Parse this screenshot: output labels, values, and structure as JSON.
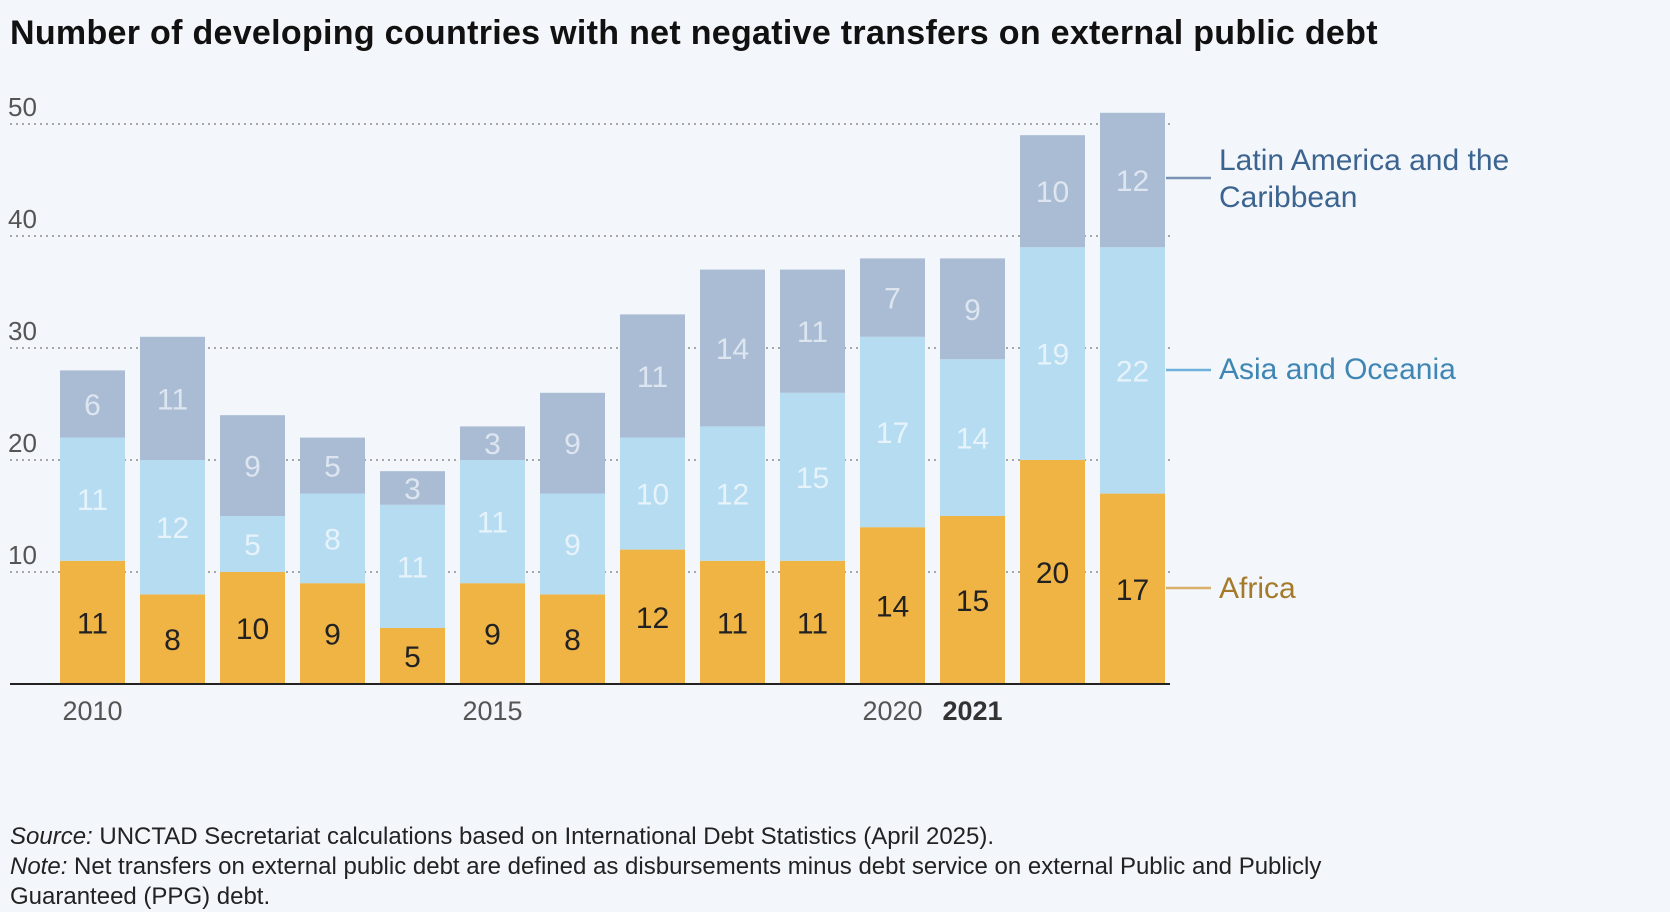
{
  "title": "Number of developing countries with net negative transfers on external public debt",
  "footnote": {
    "source_label": "Source:",
    "source_text": " UNCTAD Secretariat calculations based on International Debt Statistics (April 2025).",
    "note_label": "Note:",
    "note_text": " Net transfers on external public debt are defined as disbursements minus debt service on external Public and Publicly",
    "note_text_2": "Guaranteed (PPG) debt."
  },
  "colors": {
    "africa": "#f0b445",
    "asia": "#b6dcf1",
    "latam": "#a9bcd4",
    "africa_label": "#a57b2a",
    "asia_label": "#3f86b4",
    "latam_label": "#3c6490",
    "inbar_latam": "#dde6f0",
    "inbar_asia": "#e6f3fb",
    "inbar_africa": "#222222",
    "grid": "#777777",
    "axis_text": "#555555"
  },
  "chart_data": {
    "type": "bar",
    "stacked": true,
    "categories": [
      "2010",
      "2011",
      "2012",
      "2013",
      "2014",
      "2015",
      "2016",
      "2017",
      "2018",
      "2019",
      "2020",
      "2021",
      "2022",
      "2023"
    ],
    "tick_labels": [
      {
        "index": 0,
        "label": "2010",
        "bold": false
      },
      {
        "index": 5,
        "label": "2015",
        "bold": false
      },
      {
        "index": 10,
        "label": "2020",
        "bold": false
      },
      {
        "index": 11,
        "label": "2021",
        "bold": true
      }
    ],
    "series": [
      {
        "name": "Africa",
        "values": [
          11,
          8,
          10,
          9,
          5,
          9,
          8,
          12,
          11,
          11,
          14,
          15,
          20,
          17
        ]
      },
      {
        "name": "Asia and Oceania",
        "values": [
          11,
          12,
          5,
          8,
          11,
          11,
          9,
          10,
          12,
          15,
          17,
          14,
          19,
          22
        ]
      },
      {
        "name": "Latin America and the Caribbean",
        "values": [
          6,
          11,
          9,
          5,
          3,
          3,
          9,
          11,
          14,
          11,
          7,
          9,
          10,
          12
        ]
      }
    ],
    "legend": [
      {
        "lines": [
          "Latin America and the",
          "Caribbean"
        ],
        "series": 2
      },
      {
        "lines": [
          "Asia and Oceania"
        ],
        "series": 1
      },
      {
        "lines": [
          "Africa"
        ],
        "series": 0
      }
    ],
    "yticks": [
      10,
      20,
      30,
      40,
      50
    ],
    "ylim": [
      0,
      52
    ],
    "grid": true,
    "legend_position": "right"
  }
}
